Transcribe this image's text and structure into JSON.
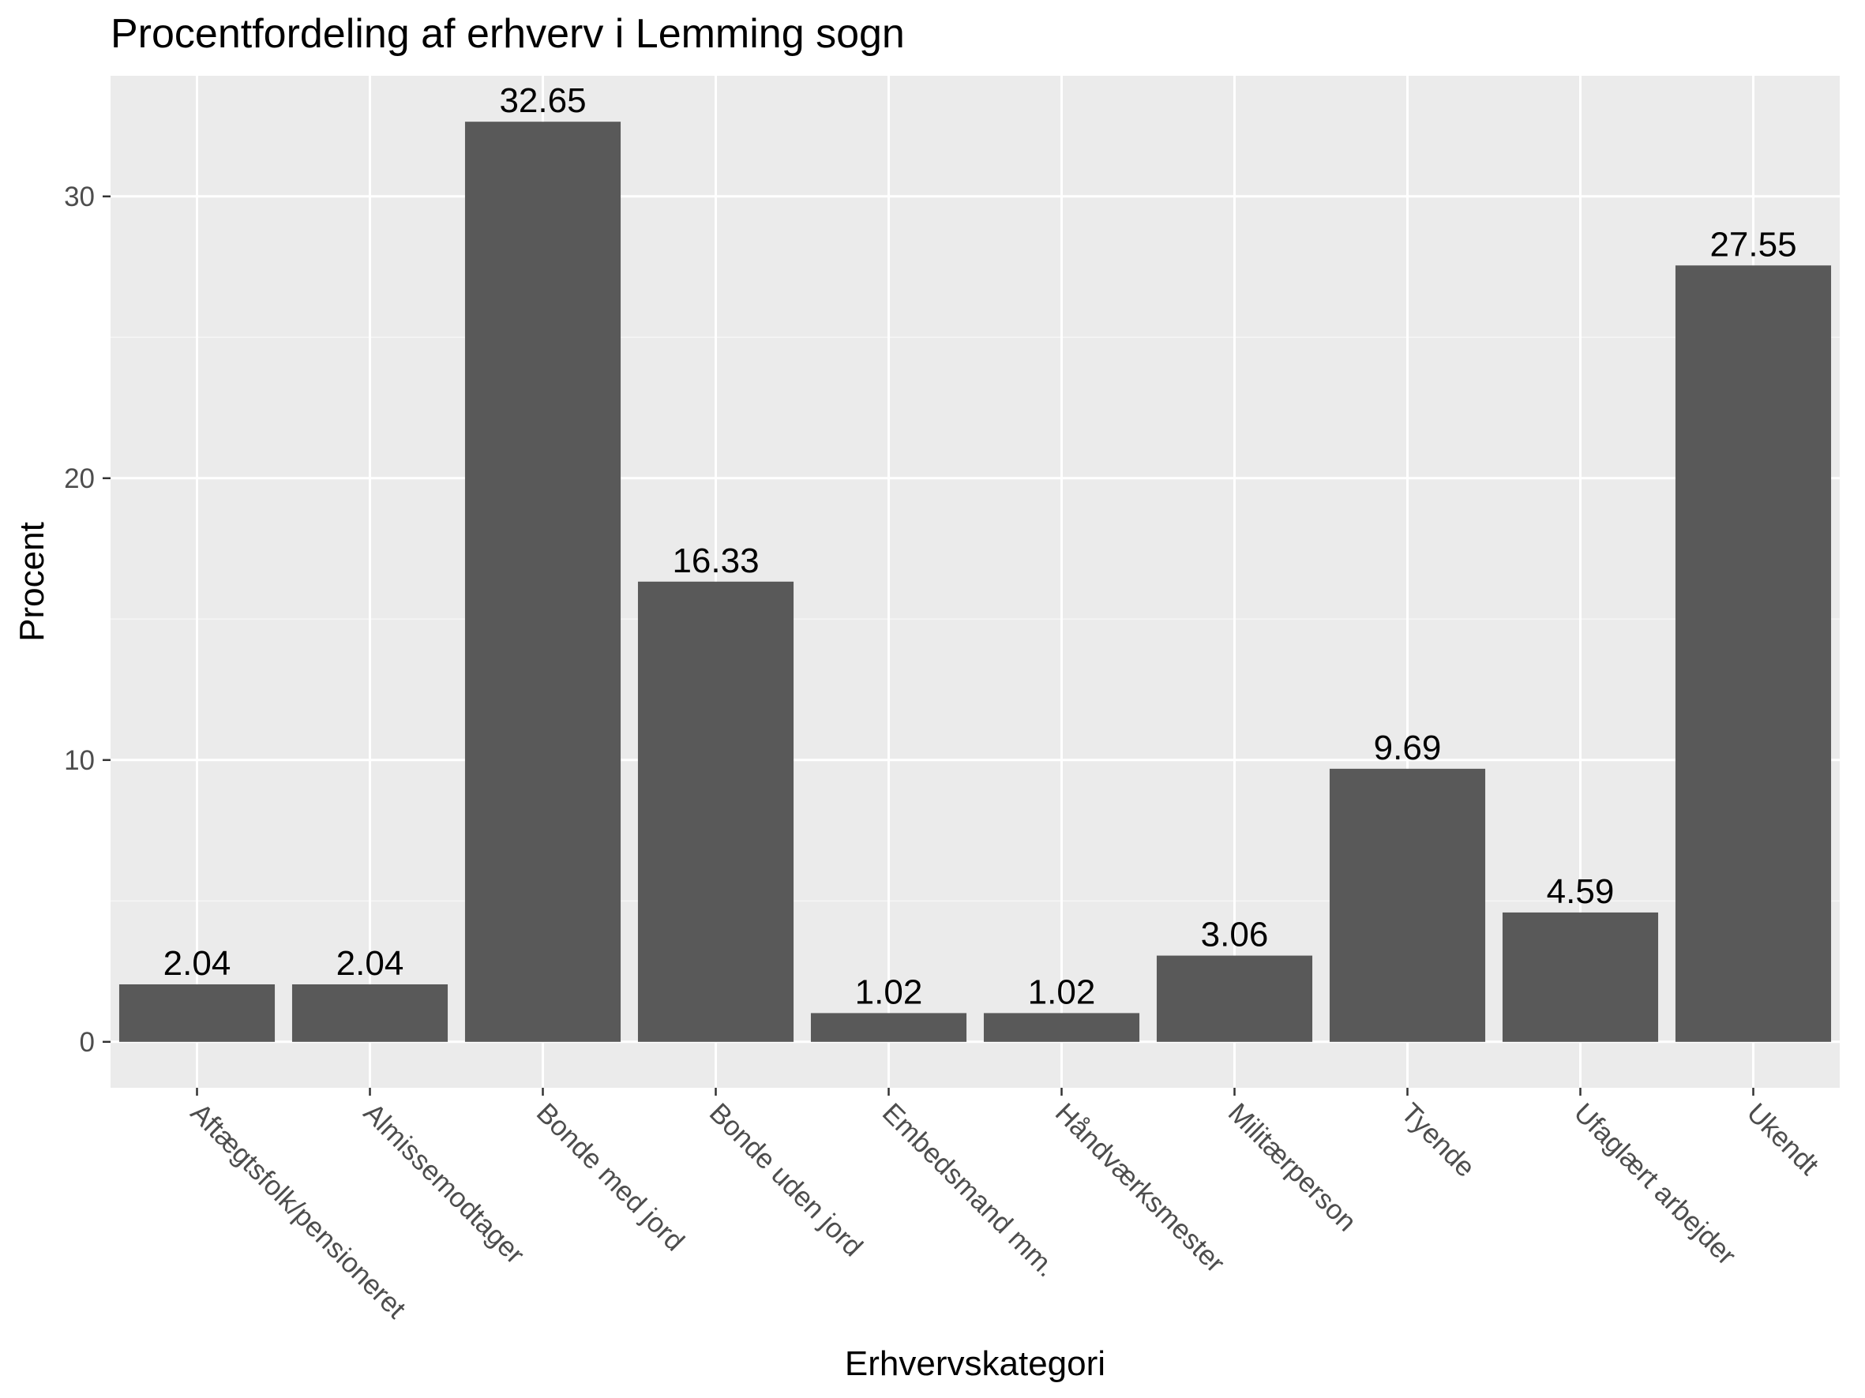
{
  "chart_data": {
    "type": "bar",
    "title": "Procentfordeling af erhverv i Lemming sogn",
    "xlabel": "Erhvervskategori",
    "ylabel": "Procent",
    "categories": [
      "Aftægtsfolk/pensioneret",
      "Almissemodtager",
      "Bonde med jord",
      "Bonde uden jord",
      "Embedsmand mm.",
      "Håndværksmester",
      "Militærperson",
      "Tyende",
      "Ufaglært arbejder",
      "Ukendt"
    ],
    "values": [
      2.04,
      2.04,
      32.65,
      16.33,
      1.02,
      1.02,
      3.06,
      9.69,
      4.59,
      27.55
    ],
    "data_labels": [
      "2.04",
      "2.04",
      "32.65",
      "16.33",
      "1.02",
      "1.02",
      "3.06",
      "9.69",
      "4.59",
      "27.55"
    ],
    "yticks": [
      0,
      10,
      20,
      30
    ],
    "ytick_labels": [
      "0",
      "10",
      "20",
      "30"
    ],
    "ylim": [
      -1.63,
      34.28
    ],
    "grid": true,
    "legend": "none",
    "colors": {
      "bar": "#595959",
      "panel": "#EBEBEB",
      "grid_major": "#FFFFFF",
      "grid_minor": "#F5F5F5",
      "tick_text": "#4D4D4D",
      "tick_mark": "#333333",
      "text": "#000000"
    }
  }
}
